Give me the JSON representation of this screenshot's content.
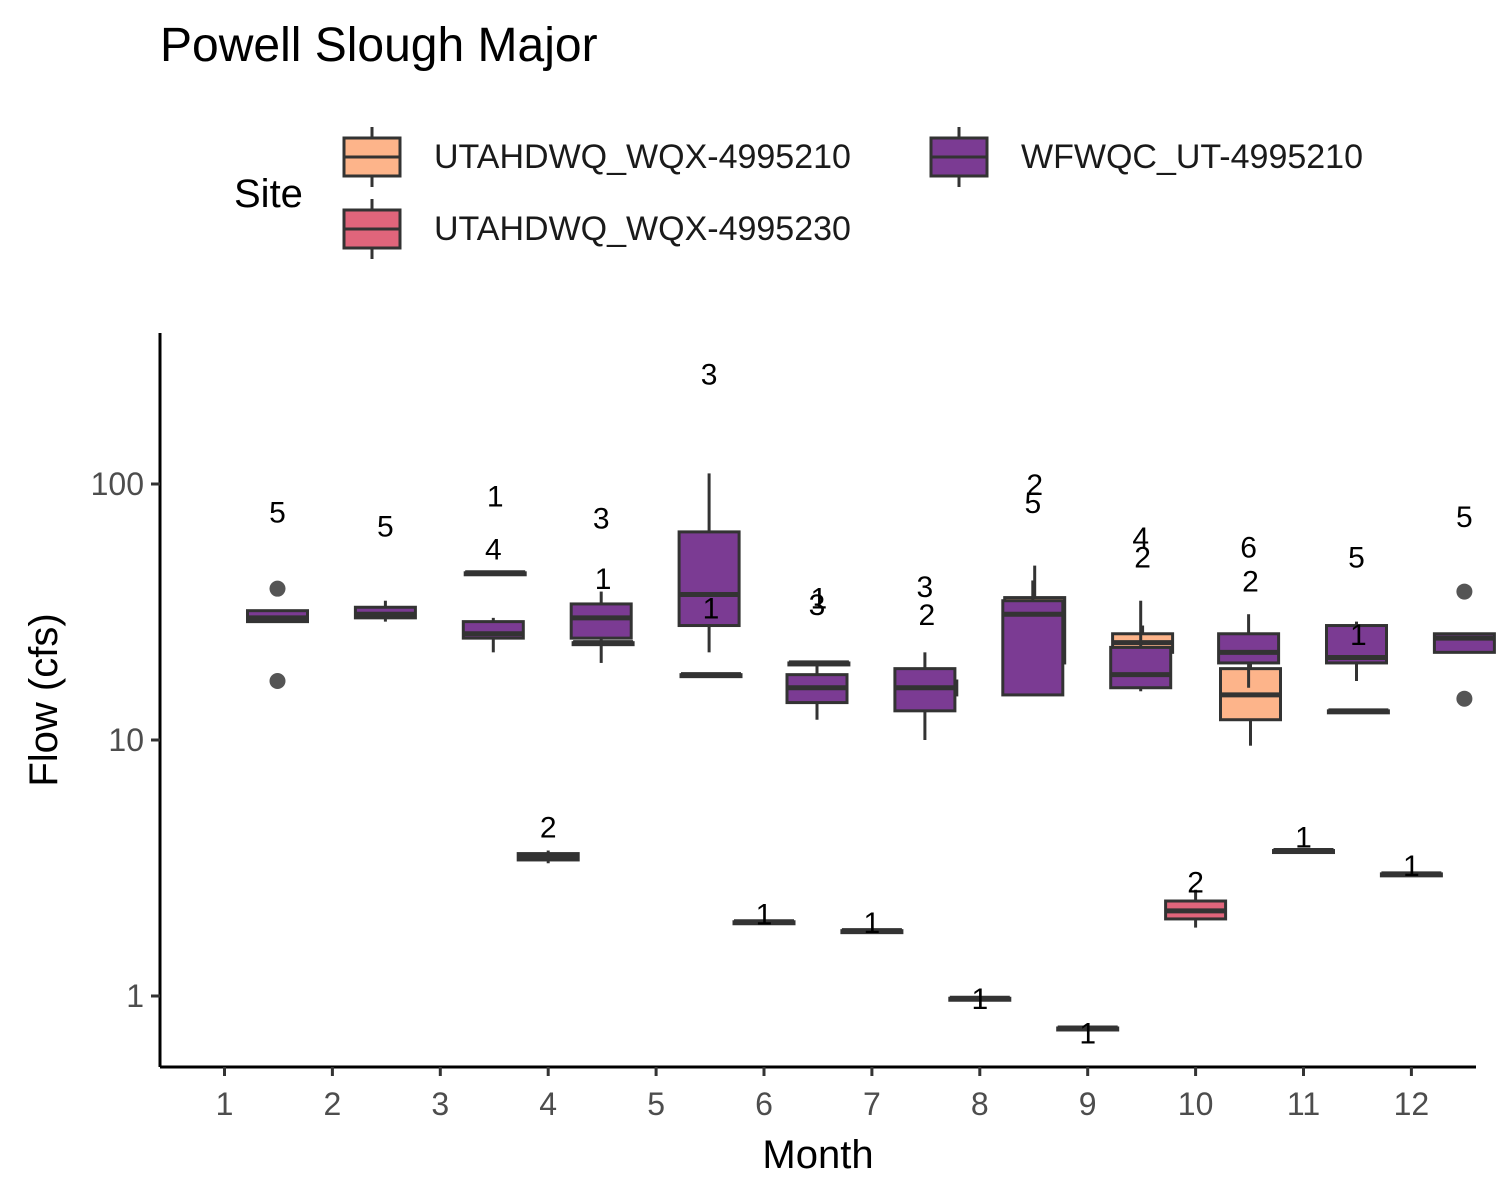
{
  "chart_data": {
    "type": "box",
    "title": "Powell Slough Major",
    "xlabel": "Month",
    "ylabel": "Flow (cfs)",
    "y_scale": "log10",
    "ylim": [
      0.55,
      380
    ],
    "y_ticks": [
      1,
      10,
      100
    ],
    "y_tick_labels": [
      "1",
      "10",
      "100"
    ],
    "categories": [
      "1",
      "2",
      "3",
      "4",
      "5",
      "6",
      "7",
      "8",
      "9",
      "10",
      "11",
      "12"
    ],
    "legend": {
      "title": "Site",
      "placement": "top",
      "entries": [
        {
          "name": "UTAHDWQ_WQX-4995210",
          "color": "#FDB48A"
        },
        {
          "name": "WFWQC_UT-4995210",
          "color": "#7B3B93"
        },
        {
          "name": "UTAHDWQ_WQX-4995230",
          "color": "#E0657B"
        }
      ]
    },
    "series": [
      {
        "name": "UTAHDWQ_WQX-4995210",
        "color": "#FDB48A",
        "boxes": [
          {
            "month": "4",
            "min": 45,
            "q1": 45,
            "median": 45,
            "q3": 45,
            "max": 45,
            "outliers": [],
            "n": "1",
            "n_value": 90
          },
          {
            "month": "5",
            "min": 24,
            "q1": 24,
            "median": 24,
            "q3": 24,
            "max": 24,
            "outliers": [],
            "n": "1",
            "n_value": 43
          },
          {
            "month": "6",
            "min": 18,
            "q1": 18,
            "median": 18,
            "q3": 18,
            "max": 18,
            "outliers": [],
            "n": "1",
            "n_value": 33
          },
          {
            "month": "7",
            "min": 20,
            "q1": 20,
            "median": 20,
            "q3": 20,
            "max": 20,
            "outliers": [],
            "n": "1",
            "n_value": 36
          },
          {
            "month": "8",
            "min": 14.5,
            "q1": 15,
            "median": 16,
            "q3": 17,
            "max": 17.5,
            "outliers": [],
            "n": "2",
            "n_value": 31
          },
          {
            "month": "9",
            "min": 15,
            "q1": 20,
            "median": 27,
            "q3": 36,
            "max": 48,
            "outliers": [],
            "n": "2",
            "n_value": 100
          },
          {
            "month": "10",
            "min": 20,
            "q1": 22,
            "median": 24,
            "q3": 26,
            "max": 28,
            "outliers": [],
            "n": "2",
            "n_value": 52
          },
          {
            "month": "11",
            "min": 9.5,
            "q1": 12,
            "median": 15,
            "q3": 19,
            "max": 24,
            "outliers": [],
            "n": "2",
            "n_value": 42
          },
          {
            "month": "12",
            "min": 13,
            "q1": 13,
            "median": 13,
            "q3": 13,
            "max": 13,
            "outliers": [],
            "n": "1",
            "n_value": 26
          }
        ]
      },
      {
        "name": "WFWQC_UT-4995210",
        "color": "#7B3B93",
        "boxes": [
          {
            "month": "1",
            "min": 29,
            "q1": 29,
            "median": 30,
            "q3": 32,
            "max": 32,
            "outliers": [
              17,
              39
            ],
            "n": "5",
            "n_value": 78
          },
          {
            "month": "2",
            "min": 29,
            "q1": 30,
            "median": 31,
            "q3": 33,
            "max": 35,
            "outliers": [],
            "n": "5",
            "n_value": 69
          },
          {
            "month": "3",
            "min": 22,
            "q1": 25,
            "median": 26,
            "q3": 29,
            "max": 30,
            "outliers": [],
            "n": "4",
            "n_value": 56
          },
          {
            "month": "4",
            "min": 20,
            "q1": 25,
            "median": 30,
            "q3": 34,
            "max": 38,
            "outliers": [],
            "n": "3",
            "n_value": 74
          },
          {
            "month": "5",
            "min": 22,
            "q1": 28,
            "median": 37,
            "q3": 65,
            "max": 110,
            "outliers": [],
            "n": "3",
            "n_value": 270
          },
          {
            "month": "6",
            "min": 12,
            "q1": 14,
            "median": 16,
            "q3": 18,
            "max": 20,
            "outliers": [],
            "n": "3",
            "n_value": 34
          },
          {
            "month": "7",
            "min": 10,
            "q1": 13,
            "median": 16,
            "q3": 19,
            "max": 22,
            "outliers": [],
            "n": "3",
            "n_value": 40
          },
          {
            "month": "8",
            "min": 15,
            "q1": 15,
            "median": 31,
            "q3": 35,
            "max": 42,
            "outliers": [],
            "n": "5",
            "n_value": 85
          },
          {
            "month": "9",
            "min": 15.5,
            "q1": 16,
            "median": 18,
            "q3": 23,
            "max": 35,
            "outliers": [],
            "n": "4",
            "n_value": 62
          },
          {
            "month": "10",
            "min": 16,
            "q1": 20,
            "median": 22,
            "q3": 26,
            "max": 31,
            "outliers": [],
            "n": "6",
            "n_value": 57
          },
          {
            "month": "11",
            "min": 17,
            "q1": 20,
            "median": 21,
            "q3": 28,
            "max": 29,
            "outliers": [],
            "n": "5",
            "n_value": 52
          },
          {
            "month": "12",
            "min": 22,
            "q1": 22,
            "median": 25,
            "q3": 26,
            "max": 26,
            "outliers": [
              14.5,
              38
            ],
            "n": "5",
            "n_value": 75
          }
        ]
      },
      {
        "name": "UTAHDWQ_WQX-4995230",
        "color": "#E0657B",
        "boxes": [
          {
            "month": "4",
            "min": 3.3,
            "q1": 3.4,
            "median": 3.5,
            "q3": 3.6,
            "max": 3.7,
            "outliers": [],
            "n": "2",
            "n_value": 4.6
          },
          {
            "month": "6",
            "min": 1.95,
            "q1": 1.95,
            "median": 1.95,
            "q3": 1.95,
            "max": 1.95,
            "outliers": [],
            "n": "1",
            "n_value": 2.1
          },
          {
            "month": "7",
            "min": 1.8,
            "q1": 1.8,
            "median": 1.8,
            "q3": 1.8,
            "max": 1.8,
            "outliers": [],
            "n": "1",
            "n_value": 1.95
          },
          {
            "month": "8",
            "min": 0.98,
            "q1": 0.98,
            "median": 0.98,
            "q3": 0.98,
            "max": 0.98,
            "outliers": [],
            "n": "1",
            "n_value": 0.98
          },
          {
            "month": "9",
            "min": 0.75,
            "q1": 0.75,
            "median": 0.75,
            "q3": 0.75,
            "max": 0.75,
            "outliers": [],
            "n": "1",
            "n_value": 0.72
          },
          {
            "month": "10",
            "min": 1.85,
            "q1": 2.0,
            "median": 2.15,
            "q3": 2.35,
            "max": 2.6,
            "outliers": [],
            "n": "2",
            "n_value": 2.8
          },
          {
            "month": "11",
            "min": 3.7,
            "q1": 3.7,
            "median": 3.7,
            "q3": 3.7,
            "max": 3.7,
            "outliers": [],
            "n": "1",
            "n_value": 4.2
          },
          {
            "month": "12",
            "min": 3.0,
            "q1": 3.0,
            "median": 3.0,
            "q3": 3.0,
            "max": 3.0,
            "outliers": [],
            "n": "1",
            "n_value": 3.25
          }
        ]
      }
    ]
  }
}
